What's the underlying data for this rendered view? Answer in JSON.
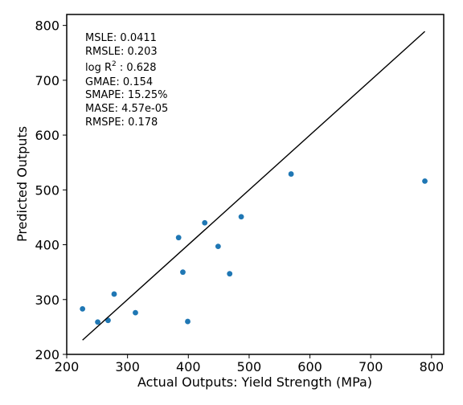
{
  "chart_data": {
    "type": "scatter",
    "xlabel": "Actual Outputs: Yield Strength (MPa)",
    "ylabel": "Predicted Outputs",
    "xlim": [
      200,
      820
    ],
    "ylim": [
      200,
      820
    ],
    "x_ticks": [
      200,
      300,
      400,
      500,
      600,
      700,
      800
    ],
    "y_ticks": [
      200,
      300,
      400,
      500,
      600,
      700,
      800
    ],
    "grid": false,
    "point_color": "#1f77b4",
    "line_color": "#000000",
    "points": [
      {
        "x": 226,
        "y": 283
      },
      {
        "x": 251,
        "y": 259
      },
      {
        "x": 268,
        "y": 262
      },
      {
        "x": 278,
        "y": 310
      },
      {
        "x": 313,
        "y": 276
      },
      {
        "x": 384,
        "y": 413
      },
      {
        "x": 391,
        "y": 350
      },
      {
        "x": 399,
        "y": 260
      },
      {
        "x": 427,
        "y": 440
      },
      {
        "x": 449,
        "y": 397
      },
      {
        "x": 468,
        "y": 347
      },
      {
        "x": 487,
        "y": 451
      },
      {
        "x": 569,
        "y": 529
      },
      {
        "x": 789,
        "y": 516
      }
    ],
    "reference_line": {
      "x": [
        226,
        789
      ],
      "y": [
        226,
        789
      ]
    },
    "metrics": {
      "msle": "MSLE: 0.0411",
      "rmsle": "RMSLE: 0.203",
      "logr2_prefix": "log R",
      "logr2_sup": "2",
      "logr2_value": " : 0.628",
      "gmae": "GMAE: 0.154",
      "smape": "SMAPE: 15.25%",
      "mase": "MASE: 4.57e-05",
      "rmspe": "RMSPE: 0.178"
    }
  }
}
